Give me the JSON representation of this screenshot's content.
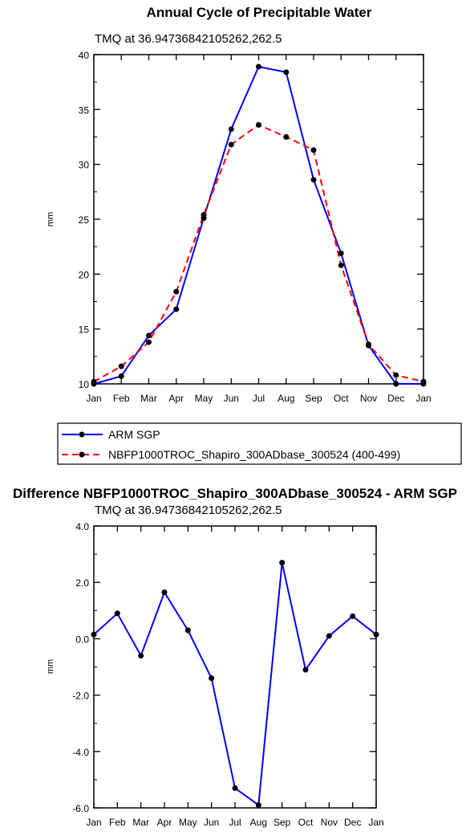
{
  "chart_data": [
    {
      "type": "line",
      "title": "Annual Cycle of Precipitable Water",
      "subtitle": "TMQ at 36.94736842105262,262.5",
      "xlabel": "",
      "ylabel": "mm",
      "categories": [
        "Jan",
        "Feb",
        "Mar",
        "Apr",
        "May",
        "Jun",
        "Jul",
        "Aug",
        "Sep",
        "Oct",
        "Nov",
        "Dec",
        "Jan"
      ],
      "ylim": [
        10,
        40
      ],
      "yticks": [
        10,
        15,
        20,
        25,
        30,
        35,
        40
      ],
      "ytick_labels": [
        "10",
        "15",
        "20",
        "25",
        "30",
        "35",
        "40"
      ],
      "legend_position": "bottom",
      "grid": false,
      "series": [
        {
          "name": "ARM SGP",
          "color": "#0000ff",
          "dash": "solid",
          "values": [
            10.0,
            10.7,
            14.4,
            16.8,
            25.1,
            33.2,
            38.9,
            38.4,
            28.6,
            21.9,
            13.5,
            10.0,
            10.0
          ]
        },
        {
          "name": "NBFP1000TROC_Shapiro_300ADbase_300524 (400-499)",
          "color": "#ff0000",
          "dash": "dashed",
          "values": [
            10.2,
            11.6,
            13.8,
            18.4,
            25.4,
            31.8,
            33.6,
            32.5,
            31.3,
            20.8,
            13.6,
            10.8,
            10.2
          ]
        }
      ]
    },
    {
      "type": "line",
      "title": "Difference NBFP1000TROC_Shapiro_300ADbase_300524 - ARM SGP",
      "subtitle": "TMQ at 36.94736842105262,262.5",
      "xlabel": "",
      "ylabel": "mm",
      "categories": [
        "Jan",
        "Feb",
        "Mar",
        "Apr",
        "May",
        "Jun",
        "Jul",
        "Aug",
        "Sep",
        "Oct",
        "Nov",
        "Dec",
        "Jan"
      ],
      "ylim": [
        -6,
        4
      ],
      "yticks": [
        -6,
        -4,
        -2,
        0,
        2,
        4
      ],
      "ytick_labels": [
        "-6.0",
        "-4.0",
        "-2.0",
        "0.0",
        "2.0",
        "4.0"
      ],
      "grid": false,
      "series": [
        {
          "color": "#0000ff",
          "dash": "solid",
          "values": [
            0.15,
            0.9,
            -0.6,
            1.65,
            0.3,
            -1.4,
            -5.3,
            -5.9,
            2.7,
            -1.1,
            0.1,
            0.8,
            0.15
          ]
        }
      ]
    }
  ]
}
